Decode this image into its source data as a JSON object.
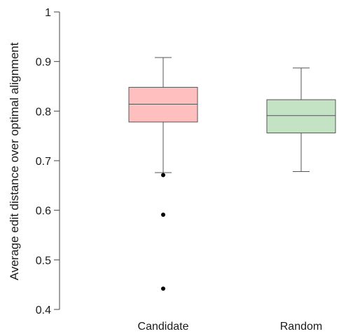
{
  "chart_data": {
    "type": "box",
    "title": "",
    "xlabel": "",
    "ylabel": "Average edit distance over optimal alignment",
    "ylim": [
      0.4,
      1.0
    ],
    "yticks": [
      "0.4",
      "0.5",
      "0.6",
      "0.7",
      "0.8",
      "0.9",
      "1"
    ],
    "grid": false,
    "categories": [
      "Candidate",
      "Random"
    ],
    "boxes": [
      {
        "category": "Candidate",
        "whisker_low": 0.676,
        "q1": 0.778,
        "median": 0.814,
        "q3": 0.848,
        "whisker_high": 0.908,
        "outliers": [
          0.671,
          0.591,
          0.442
        ],
        "fill": "#ffbfbf",
        "stroke": "#555555"
      },
      {
        "category": "Random",
        "whisker_low": 0.678,
        "q1": 0.756,
        "median": 0.791,
        "q3": 0.823,
        "whisker_high": 0.887,
        "outliers": [],
        "fill": "#c4e3c4",
        "stroke": "#555555"
      }
    ]
  }
}
